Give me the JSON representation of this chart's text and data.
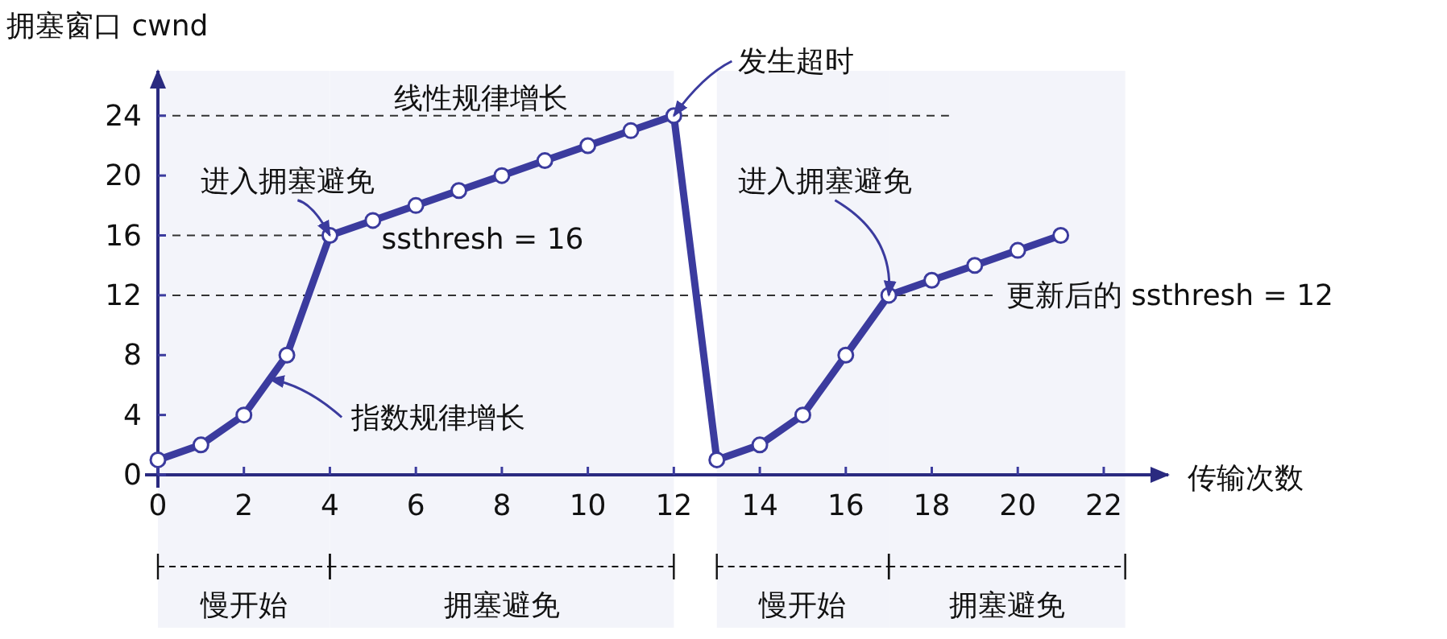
{
  "chart_data": {
    "type": "line",
    "ylabel": "拥塞窗口 cwnd",
    "xlabel": "传输次数",
    "x": [
      0,
      1,
      2,
      3,
      4,
      5,
      6,
      7,
      8,
      9,
      10,
      11,
      12,
      13,
      14,
      15,
      16,
      17,
      18,
      19,
      20,
      21
    ],
    "series": [
      {
        "color": "#3b3b9e",
        "values": [
          1,
          2,
          4,
          8,
          16,
          17,
          18,
          19,
          20,
          21,
          22,
          23,
          24,
          1,
          2,
          4,
          8,
          12,
          13,
          14,
          15,
          16
        ]
      }
    ],
    "xlim": [
      0,
      23.5
    ],
    "ylim": [
      0,
      27
    ],
    "xticks": [
      0,
      2,
      4,
      6,
      8,
      10,
      12,
      14,
      16,
      18,
      20,
      22
    ],
    "yticks": [
      0,
      4,
      8,
      12,
      16,
      20,
      24
    ],
    "marker": "circle",
    "grid": false,
    "ref_lines": [
      {
        "axis": "y",
        "value": 24,
        "label": null,
        "line_style": "dashed"
      },
      {
        "axis": "y",
        "value": 16,
        "label": "ssthresh = 16",
        "line_style": "dashed"
      },
      {
        "axis": "y",
        "value": 12,
        "label": "更新后的 ssthresh = 12",
        "line_style": "dashed"
      }
    ],
    "bands": [
      {
        "axis": "x",
        "from": 0,
        "to": 4,
        "label": "慢开始"
      },
      {
        "axis": "x",
        "from": 4,
        "to": 12,
        "label": "拥塞避免"
      },
      {
        "axis": "x",
        "from": 13,
        "to": 17,
        "label": "慢开始"
      },
      {
        "axis": "x",
        "from": 17,
        "to": 22.5,
        "label": "拥塞避免"
      }
    ],
    "annotations": [
      "线性规律增长",
      {
        "text": "发生超时",
        "x": 12,
        "y": 24
      },
      {
        "text": "进入拥塞避免",
        "x": 4,
        "y": 16
      },
      {
        "text": "指数规律增长",
        "x": 2.6,
        "y": 6.4
      },
      {
        "text": "进入拥塞避免",
        "x": 17,
        "y": 12
      }
    ]
  }
}
